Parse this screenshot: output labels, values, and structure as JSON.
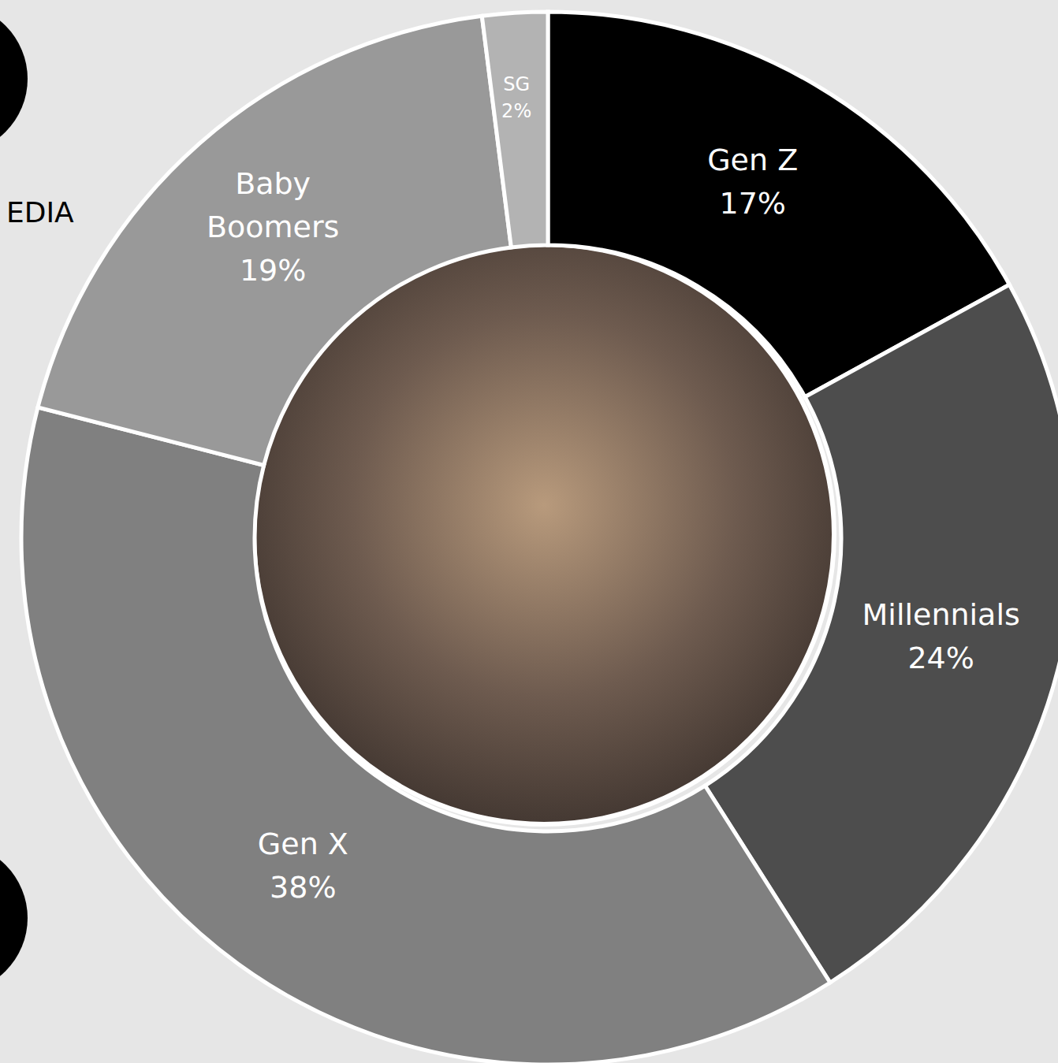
{
  "chart_data": {
    "type": "donut",
    "categories": [
      "Gen Z",
      "Millennials",
      "Gen X",
      "Baby Boomers",
      "SG"
    ],
    "values": [
      17,
      24,
      38,
      19,
      2
    ],
    "value_labels": [
      "17%",
      "24%",
      "38%",
      "19%",
      "2%"
    ],
    "colors": [
      "#000000",
      "#4d4d4d",
      "#808080",
      "#999999",
      "#b3b3b3"
    ],
    "data_labels": true,
    "annotations": [
      "EDIA"
    ]
  }
}
